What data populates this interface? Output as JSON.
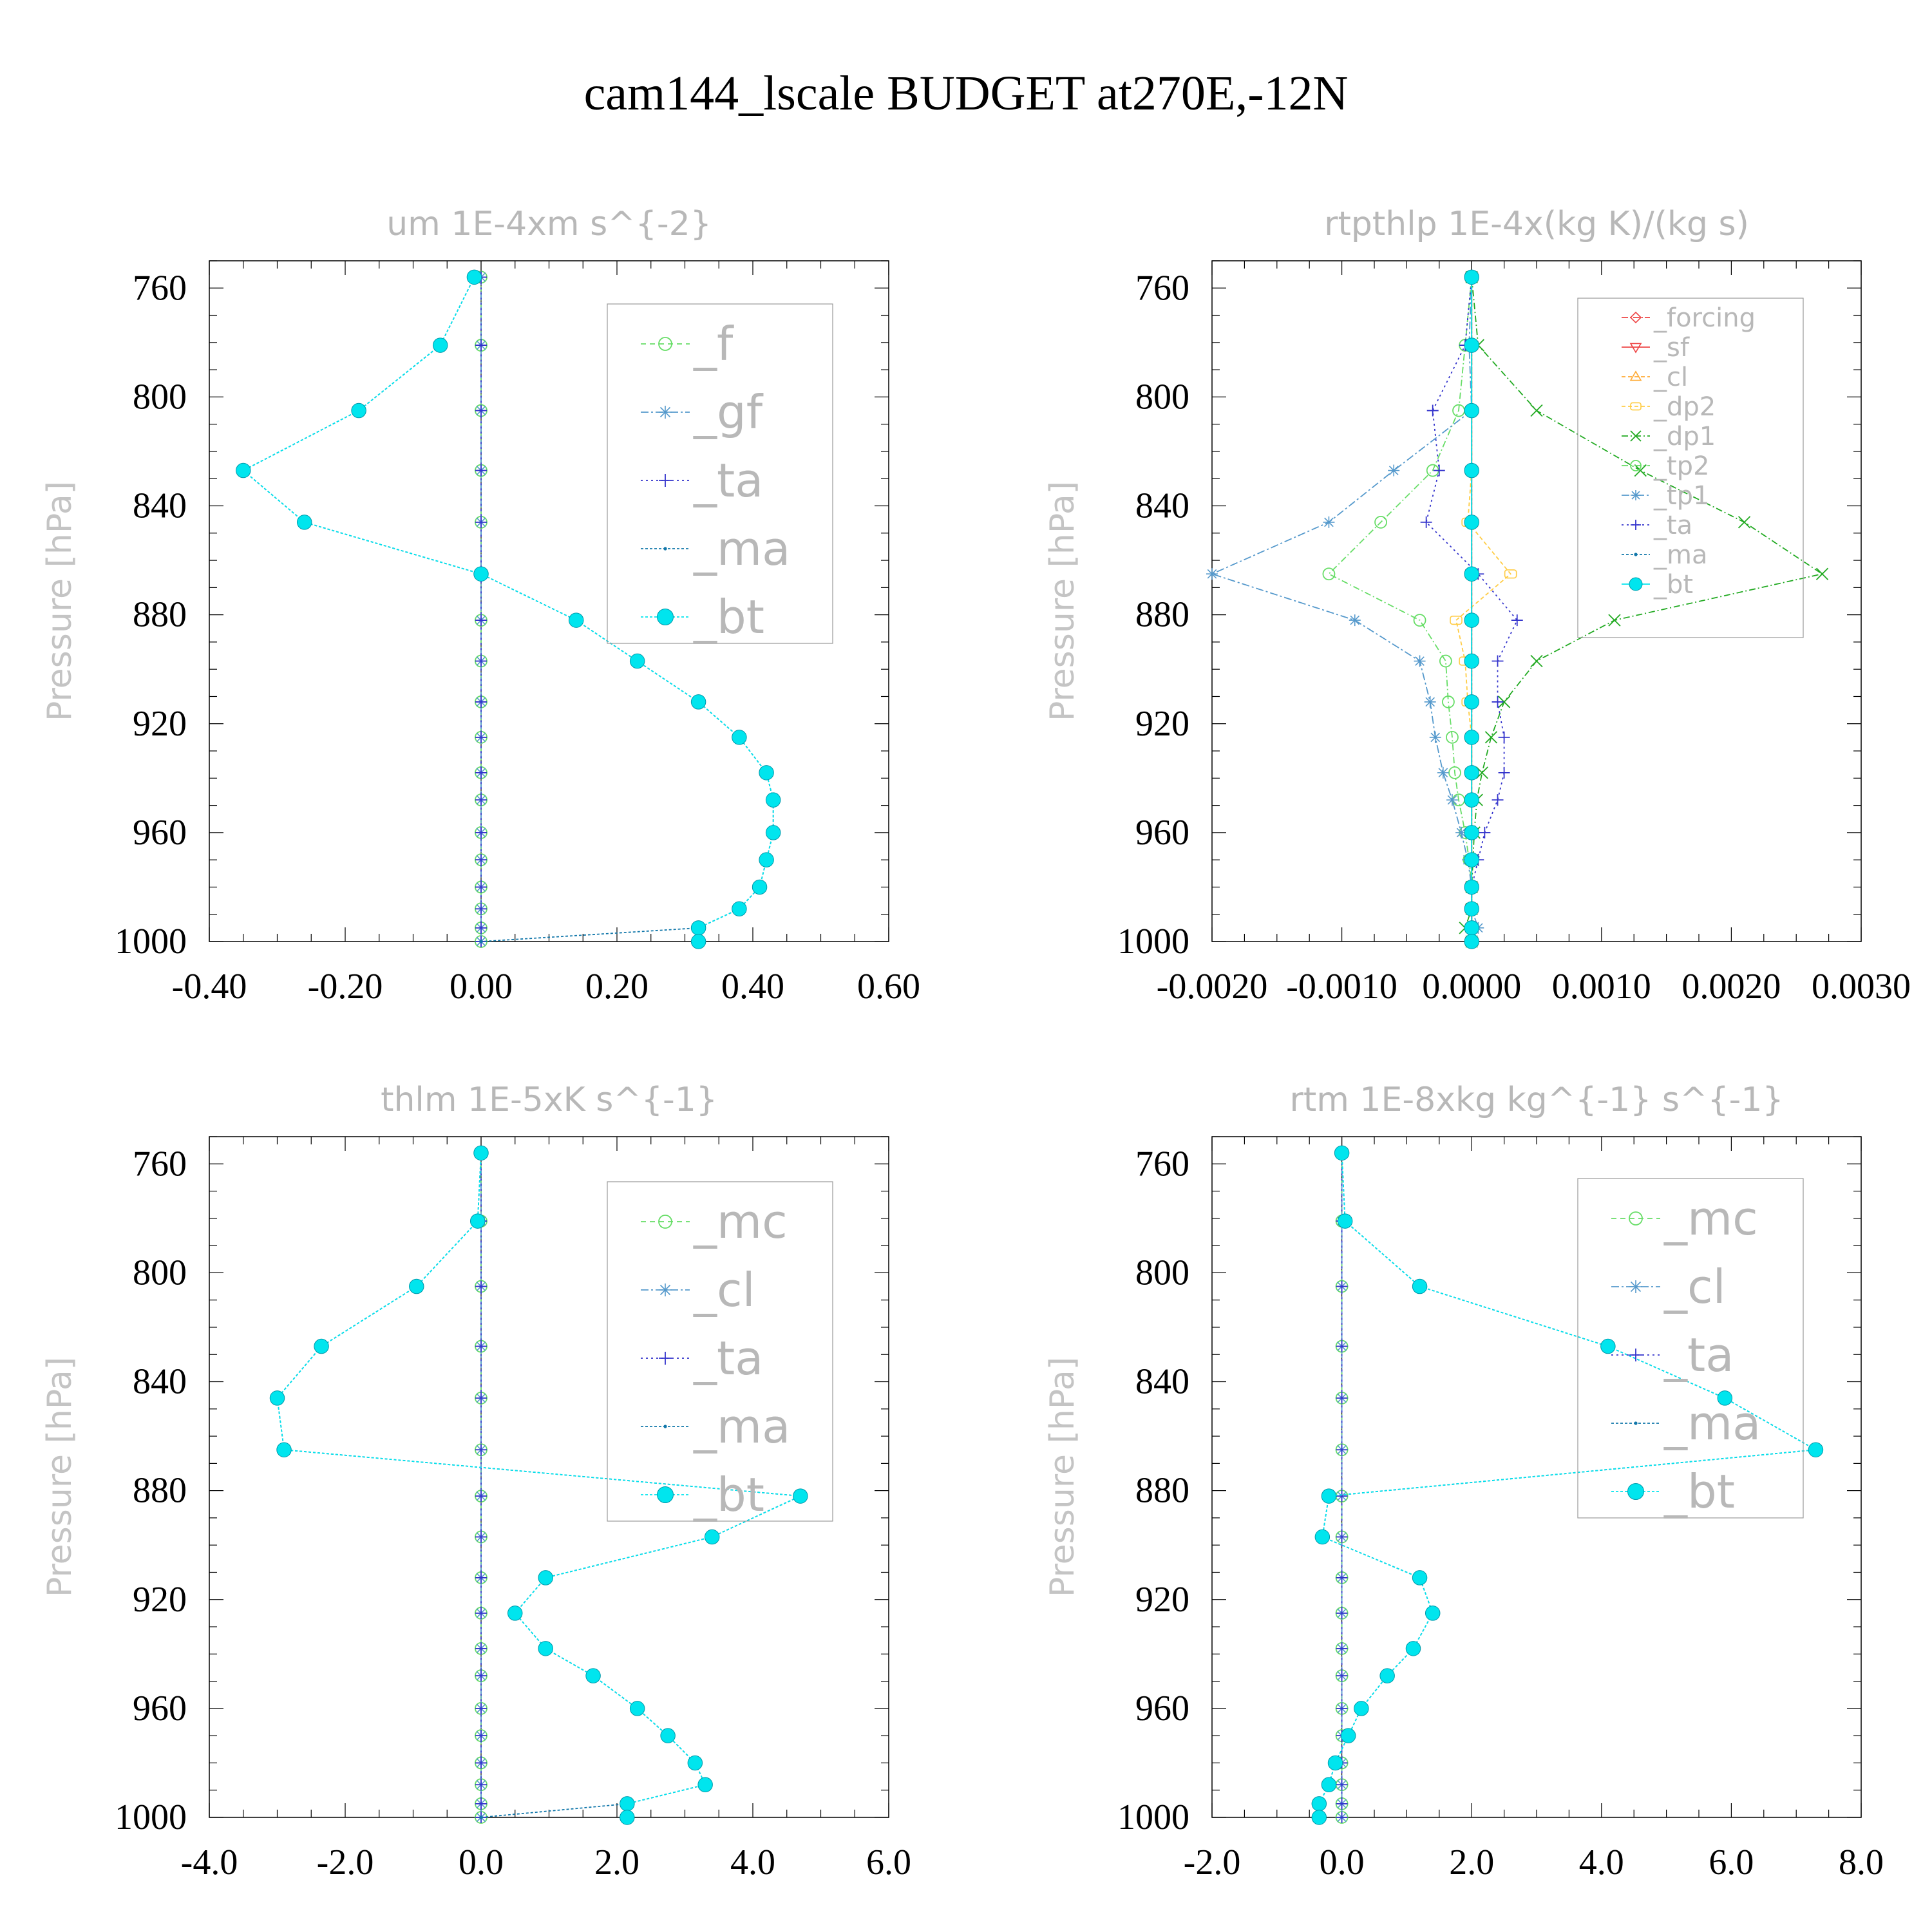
{
  "figure": {
    "title": "cam144_lscale  BUDGET at270E,-12N"
  },
  "chart_data": [
    {
      "type": "line",
      "title": "um  1E-4xm s^{-2}",
      "ylabel": "Pressure [hPa]",
      "xlabel": "",
      "xlim": [
        -0.4,
        0.6
      ],
      "ylim": [
        750,
        1000
      ],
      "y_inverted": true,
      "xticks": [
        -0.4,
        -0.2,
        0.0,
        0.2,
        0.4,
        0.6
      ],
      "xtick_labels": [
        "-0.40",
        "-0.20",
        "0.00",
        "0.20",
        "0.40",
        "0.60"
      ],
      "yticks": [
        760,
        800,
        840,
        880,
        920,
        960,
        1000
      ],
      "ytick_labels": [
        "760",
        "800",
        "840",
        "880",
        "920",
        "960",
        "1000"
      ],
      "legend_position": "top-right",
      "legend_size": "large",
      "levels": [
        756,
        781,
        805,
        827,
        846,
        865,
        882,
        897,
        912,
        925,
        938,
        948,
        960,
        970,
        980,
        988,
        995,
        1000
      ],
      "series": [
        {
          "name": "_f",
          "color": "#66dd66",
          "marker": "circle-open",
          "dash": "8,6",
          "values": [
            0,
            0,
            0,
            0,
            0,
            0,
            0,
            0,
            0,
            0,
            0,
            0,
            0,
            0,
            0,
            0,
            0,
            0
          ]
        },
        {
          "name": "_gf",
          "color": "#5599cc",
          "marker": "asterisk",
          "dash": "12,4,3,4",
          "values": [
            0,
            0,
            0,
            0,
            0,
            0,
            0,
            0,
            0,
            0,
            0,
            0,
            0,
            0,
            0,
            0,
            0,
            0
          ]
        },
        {
          "name": "_ta",
          "color": "#3333cc",
          "marker": "plus",
          "dash": "3,5",
          "values": [
            0,
            0,
            0,
            0,
            0,
            0,
            0,
            0,
            0,
            0,
            0,
            0,
            0,
            0,
            0,
            0,
            0,
            0
          ]
        },
        {
          "name": "_ma",
          "color": "#1177aa",
          "marker": "dot",
          "dash": "4,3",
          "values": [
            -0.01,
            -0.06,
            -0.18,
            -0.35,
            -0.26,
            0.0,
            0.14,
            0.23,
            0.32,
            0.38,
            0.42,
            0.43,
            0.43,
            0.42,
            0.41,
            0.38,
            0.32,
            0.0
          ]
        },
        {
          "name": "_bt",
          "color": "#00e5ee",
          "marker": "filled-circle",
          "dash": "4,3",
          "values": [
            -0.01,
            -0.06,
            -0.18,
            -0.35,
            -0.26,
            0.0,
            0.14,
            0.23,
            0.32,
            0.38,
            0.42,
            0.43,
            0.43,
            0.42,
            0.41,
            0.38,
            0.32,
            0.32
          ]
        }
      ]
    },
    {
      "type": "line",
      "title": "rtpthlp  1E-4x(kg K)/(kg s)",
      "ylabel": "Pressure [hPa]",
      "xlabel": "",
      "xlim": [
        -0.002,
        0.003
      ],
      "ylim": [
        750,
        1000
      ],
      "y_inverted": true,
      "xticks": [
        -0.002,
        -0.001,
        0.0,
        0.001,
        0.002,
        0.003
      ],
      "xtick_labels": [
        "-0.0020",
        "-0.0010",
        "0.0000",
        "0.0010",
        "0.0020",
        "0.0030"
      ],
      "yticks": [
        760,
        800,
        840,
        880,
        920,
        960,
        1000
      ],
      "ytick_labels": [
        "760",
        "800",
        "840",
        "880",
        "920",
        "960",
        "1000"
      ],
      "legend_position": "top-right",
      "legend_size": "small",
      "levels": [
        756,
        781,
        805,
        827,
        846,
        865,
        882,
        897,
        912,
        925,
        938,
        948,
        960,
        970,
        980,
        988,
        995,
        1000
      ],
      "series": [
        {
          "name": "_forcing",
          "color": "#ee4444",
          "marker": "diamond-open",
          "dash": "10,3,2,3",
          "values": [
            0,
            0,
            0,
            0,
            0,
            0,
            0,
            0,
            0,
            0,
            0,
            0,
            0,
            0,
            0,
            0,
            0,
            0
          ]
        },
        {
          "name": "_sf",
          "color": "#ee4444",
          "marker": "triangle-down",
          "dash": "",
          "values": [
            0,
            0,
            0,
            0,
            0,
            0,
            0,
            0,
            0,
            0,
            0,
            0,
            0,
            0,
            0,
            0,
            0,
            0
          ]
        },
        {
          "name": "_cl",
          "color": "#ffaa33",
          "marker": "triangle-up",
          "dash": "6,4",
          "values": [
            0,
            0,
            0,
            0,
            0,
            0,
            0,
            0,
            0,
            0,
            0,
            0,
            0,
            0,
            0,
            0,
            0,
            0
          ]
        },
        {
          "name": "_dp2",
          "color": "#ffcc44",
          "marker": "square-open",
          "dash": "6,4",
          "values": [
            0,
            0,
            0,
            0,
            -3e-05,
            0.0003,
            -0.00012,
            -5e-05,
            -3e-05,
            0,
            0,
            0,
            0,
            0,
            0,
            0,
            0,
            0
          ]
        },
        {
          "name": "_dp1",
          "color": "#22aa22",
          "marker": "cross",
          "dash": "10,4,2,4",
          "values": [
            0,
            5e-05,
            0.0005,
            0.0013,
            0.0021,
            0.0027,
            0.0011,
            0.0005,
            0.00025,
            0.00015,
            8e-05,
            4e-05,
            2e-05,
            1e-05,
            0,
            0,
            -5e-05,
            0
          ]
        },
        {
          "name": "_tp2",
          "color": "#66dd66",
          "marker": "circle-open",
          "dash": "10,4,2,4",
          "values": [
            0,
            -5e-05,
            -0.0001,
            -0.0003,
            -0.0007,
            -0.0011,
            -0.0004,
            -0.0002,
            -0.00018,
            -0.00015,
            -0.00013,
            -0.0001,
            -5e-05,
            -2e-05,
            0,
            0,
            0,
            0
          ]
        },
        {
          "name": "_tp1",
          "color": "#5599cc",
          "marker": "asterisk",
          "dash": "12,4,3,4",
          "values": [
            0,
            -2e-05,
            0,
            -0.0006,
            -0.0011,
            -0.002,
            -0.0009,
            -0.0004,
            -0.00032,
            -0.00028,
            -0.00022,
            -0.00015,
            -8e-05,
            -3e-05,
            0,
            0,
            5e-05,
            0
          ]
        },
        {
          "name": "_ta",
          "color": "#3333cc",
          "marker": "plus",
          "dash": "3,5",
          "values": [
            0,
            -5e-05,
            -0.0003,
            -0.00025,
            -0.00035,
            5e-05,
            0.00035,
            0.0002,
            0.0002,
            0.00025,
            0.00025,
            0.0002,
            0.0001,
            5e-05,
            0,
            0,
            0,
            0
          ]
        },
        {
          "name": "_ma",
          "color": "#1177aa",
          "marker": "dot",
          "dash": "4,3",
          "values": [
            0,
            0,
            0,
            0,
            0,
            0,
            0,
            0,
            0,
            0,
            0,
            0,
            0,
            0,
            0,
            0,
            0,
            0
          ]
        },
        {
          "name": "_bt",
          "color": "#00e5ee",
          "marker": "filled-circle",
          "dash": "",
          "values": [
            0,
            0,
            0,
            0,
            0,
            0,
            0,
            0,
            0,
            0,
            0,
            0,
            0,
            0,
            0,
            0,
            0,
            0
          ]
        }
      ]
    },
    {
      "type": "line",
      "title": "thlm  1E-5xK s^{-1}",
      "ylabel": "Pressure [hPa]",
      "xlabel": "",
      "xlim": [
        -4.0,
        6.0
      ],
      "ylim": [
        750,
        1000
      ],
      "y_inverted": true,
      "xticks": [
        -4.0,
        -2.0,
        0.0,
        2.0,
        4.0,
        6.0
      ],
      "xtick_labels": [
        "-4.0",
        "-2.0",
        "0.0",
        "2.0",
        "4.0",
        "6.0"
      ],
      "yticks": [
        760,
        800,
        840,
        880,
        920,
        960,
        1000
      ],
      "ytick_labels": [
        "760",
        "800",
        "840",
        "880",
        "920",
        "960",
        "1000"
      ],
      "legend_position": "top-right",
      "legend_size": "large",
      "levels": [
        756,
        781,
        805,
        827,
        846,
        865,
        882,
        897,
        912,
        925,
        938,
        948,
        960,
        970,
        980,
        988,
        995,
        1000
      ],
      "series": [
        {
          "name": "_mc",
          "color": "#66dd66",
          "marker": "circle-open",
          "dash": "8,6",
          "values": [
            0,
            0,
            0,
            0,
            0,
            0,
            0,
            0,
            0,
            0,
            0,
            0,
            0,
            0,
            0,
            0,
            0,
            0
          ]
        },
        {
          "name": "_cl",
          "color": "#5599cc",
          "marker": "asterisk",
          "dash": "12,4,3,4",
          "values": [
            0,
            0,
            0,
            0,
            0,
            0,
            0,
            0,
            0,
            0,
            0,
            0,
            0,
            0,
            0,
            0,
            0,
            0
          ]
        },
        {
          "name": "_ta",
          "color": "#3333cc",
          "marker": "plus",
          "dash": "3,5",
          "values": [
            0,
            0,
            0,
            0,
            0,
            0,
            0,
            0,
            0,
            0,
            0,
            0,
            0,
            0,
            0,
            0,
            0,
            0
          ]
        },
        {
          "name": "_ma",
          "color": "#1177aa",
          "marker": "dot",
          "dash": "4,3",
          "values": [
            0.0,
            -0.05,
            -0.95,
            -2.35,
            -3.0,
            -2.9,
            4.7,
            3.4,
            0.95,
            0.5,
            0.95,
            1.65,
            2.3,
            2.75,
            3.15,
            3.3,
            2.15,
            0.0
          ]
        },
        {
          "name": "_bt",
          "color": "#00e5ee",
          "marker": "filled-circle",
          "dash": "4,3",
          "values": [
            0.0,
            -0.05,
            -0.95,
            -2.35,
            -3.0,
            -2.9,
            4.7,
            3.4,
            0.95,
            0.5,
            0.95,
            1.65,
            2.3,
            2.75,
            3.15,
            3.3,
            2.15,
            2.15
          ]
        }
      ]
    },
    {
      "type": "line",
      "title": "rtm  1E-8xkg kg^{-1} s^{-1}",
      "ylabel": "Pressure [hPa]",
      "xlabel": "",
      "xlim": [
        -2.0,
        8.0
      ],
      "ylim": [
        750,
        1000
      ],
      "y_inverted": true,
      "xticks": [
        -2.0,
        0.0,
        2.0,
        4.0,
        6.0,
        8.0
      ],
      "xtick_labels": [
        "-2.0",
        "0.0",
        "2.0",
        "4.0",
        "6.0",
        "8.0"
      ],
      "yticks": [
        760,
        800,
        840,
        880,
        920,
        960,
        1000
      ],
      "ytick_labels": [
        "760",
        "800",
        "840",
        "880",
        "920",
        "960",
        "1000"
      ],
      "legend_position": "top-right",
      "legend_size": "large",
      "levels": [
        756,
        781,
        805,
        827,
        846,
        865,
        882,
        897,
        912,
        925,
        938,
        948,
        960,
        970,
        980,
        988,
        995,
        1000
      ],
      "series": [
        {
          "name": "_mc",
          "color": "#66dd66",
          "marker": "circle-open",
          "dash": "8,6",
          "values": [
            0,
            0,
            0,
            0,
            0,
            0,
            0,
            0,
            0,
            0,
            0,
            0,
            0,
            0,
            0,
            0,
            0,
            0
          ]
        },
        {
          "name": "_cl",
          "color": "#5599cc",
          "marker": "asterisk",
          "dash": "12,4,3,4",
          "values": [
            0,
            0,
            0,
            0,
            0,
            0,
            0,
            0,
            0,
            0,
            0,
            0,
            0,
            0,
            0,
            0,
            0,
            0
          ]
        },
        {
          "name": "_ta",
          "color": "#3333cc",
          "marker": "plus",
          "dash": "3,5",
          "values": [
            0,
            0,
            0,
            0,
            0,
            0,
            0,
            0,
            0,
            0,
            0,
            0,
            0,
            0,
            0,
            0,
            0,
            0
          ]
        },
        {
          "name": "_ma",
          "color": "#1177aa",
          "marker": "dot",
          "dash": "4,3",
          "values": [
            0.0,
            0.05,
            1.2,
            4.1,
            5.9,
            7.3,
            -0.2,
            -0.3,
            1.2,
            1.4,
            1.1,
            0.7,
            0.3,
            0.1,
            -0.1,
            -0.2,
            -0.35,
            -0.35
          ]
        },
        {
          "name": "_bt",
          "color": "#00e5ee",
          "marker": "filled-circle",
          "dash": "4,3",
          "values": [
            0.0,
            0.05,
            1.2,
            4.1,
            5.9,
            7.3,
            -0.2,
            -0.3,
            1.2,
            1.4,
            1.1,
            0.7,
            0.3,
            0.1,
            -0.1,
            -0.2,
            -0.35,
            -0.35
          ]
        }
      ]
    }
  ]
}
